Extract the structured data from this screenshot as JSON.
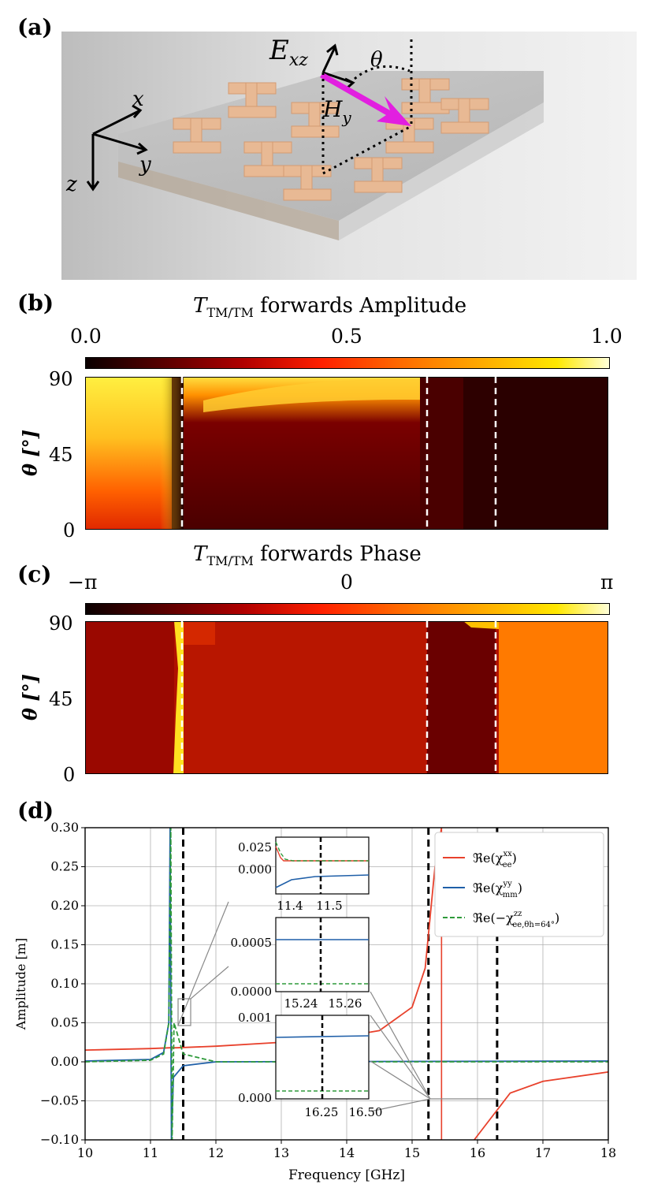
{
  "panel_a": {
    "label": "(a)",
    "axes": {
      "x": "x",
      "y": "y",
      "z": "z"
    },
    "field_labels": {
      "E": "E",
      "E_sub": "xz",
      "H": "H",
      "H_sub": "y",
      "angle": "θ"
    }
  },
  "panel_b": {
    "label": "(b)",
    "colorbar_title": "T",
    "colorbar_title_sub": "TM/TM",
    "colorbar_title_rest": " forwards Amplitude",
    "colorbar_ticks": [
      "0.0",
      "0.5",
      "1.0"
    ],
    "y_label": "θ [°]",
    "y_ticks": [
      "90",
      "45",
      "0"
    ]
  },
  "panel_c": {
    "label": "(c)",
    "colorbar_title": "T",
    "colorbar_title_sub": "TM/TM",
    "colorbar_title_rest": " forwards Phase",
    "colorbar_ticks": [
      "−π",
      "0",
      "π"
    ],
    "y_label": "θ [°]",
    "y_ticks": [
      "90",
      "45",
      "0"
    ]
  },
  "panel_d": {
    "label": "(d)",
    "xlabel": "Frequency [GHz]",
    "ylabel": "Amplitude [m]",
    "x_ticks": [
      "10",
      "11",
      "12",
      "13",
      "14",
      "15",
      "16",
      "17",
      "18"
    ],
    "y_ticks": [
      "0.30",
      "0.25",
      "0.20",
      "0.15",
      "0.10",
      "0.05",
      "0.00",
      "−0.05",
      "−0.10"
    ],
    "legend": [
      {
        "name": "ℜe(χ",
        "sup": "xx",
        "sub": "ee",
        "tail": ")",
        "color": "#e8412c",
        "dash": false
      },
      {
        "name": "ℜe(χ",
        "sup": "yy",
        "sub": "mm",
        "tail": ")",
        "color": "#1f5fa8",
        "dash": false
      },
      {
        "name": "ℜe(−χ",
        "sup": "zz",
        "sub": "ee,θh=64°",
        "tail": ")",
        "color": "#2e9a3a",
        "dash": true
      }
    ],
    "inset1": {
      "y_ticks": [
        "0.025",
        "0.000"
      ],
      "x_ticks": [
        "11.4",
        "11.5"
      ]
    },
    "inset2": {
      "y_ticks": [
        "0.0005",
        "0.0000"
      ],
      "x_ticks": [
        "15.24",
        "15.26"
      ]
    },
    "inset3": {
      "y_ticks": [
        "0.001",
        "0.000"
      ],
      "x_ticks": [
        "16.25",
        "16.50"
      ]
    }
  },
  "chart_data": [
    {
      "type": "heatmap",
      "title": "T_TM/TM forwards Amplitude",
      "ylabel": "θ [°]",
      "ylim": [
        0,
        90
      ],
      "colorbar_range": [
        0.0,
        1.0
      ],
      "colormap": "hot",
      "dashed_frequencies_GHz": [
        11.5,
        15.25,
        16.3
      ]
    },
    {
      "type": "heatmap",
      "title": "T_TM/TM forwards Phase",
      "ylabel": "θ [°]",
      "ylim": [
        0,
        90
      ],
      "colorbar_range": [
        "−π",
        "π"
      ],
      "colormap": "hot",
      "dashed_frequencies_GHz": [
        11.5,
        15.25,
        16.3
      ]
    },
    {
      "type": "line",
      "xlabel": "Frequency [GHz]",
      "ylabel": "Amplitude [m]",
      "xlim": [
        10,
        18
      ],
      "ylim": [
        -0.1,
        0.3
      ],
      "grid": true,
      "legend_position": "top-right",
      "vlines": [
        11.5,
        15.25,
        16.3
      ],
      "series": [
        {
          "name": "ℜe(χ_ee^xx)",
          "x": [
            10,
            11,
            11.3,
            11.4,
            12,
            13,
            14,
            14.5,
            15,
            15.2,
            15.35,
            15.45,
            15.95,
            16.5,
            17,
            18
          ],
          "y": [
            0.015,
            0.017,
            0.018,
            0.018,
            0.02,
            0.025,
            0.033,
            0.04,
            0.07,
            0.12,
            0.25,
            0.3,
            -0.1,
            -0.04,
            -0.025,
            -0.013
          ]
        },
        {
          "name": "ℜe(χ_mm^yy)",
          "x": [
            10,
            11,
            11.2,
            11.28,
            11.3,
            11.32,
            11.35,
            11.5,
            12,
            18
          ],
          "y": [
            0.001,
            0.003,
            0.012,
            0.05,
            0.3,
            -0.1,
            -0.02,
            -0.005,
            0.0,
            0.001
          ]
        },
        {
          "name": "ℜe(−χ_ee,θh=64°^zz)",
          "x": [
            10,
            11,
            11.2,
            11.28,
            11.31,
            11.33,
            11.36,
            11.5,
            12,
            18
          ],
          "y": [
            0.0,
            0.002,
            0.01,
            0.05,
            0.3,
            -0.1,
            0.05,
            0.01,
            0.0,
            0.0
          ]
        }
      ]
    }
  ]
}
